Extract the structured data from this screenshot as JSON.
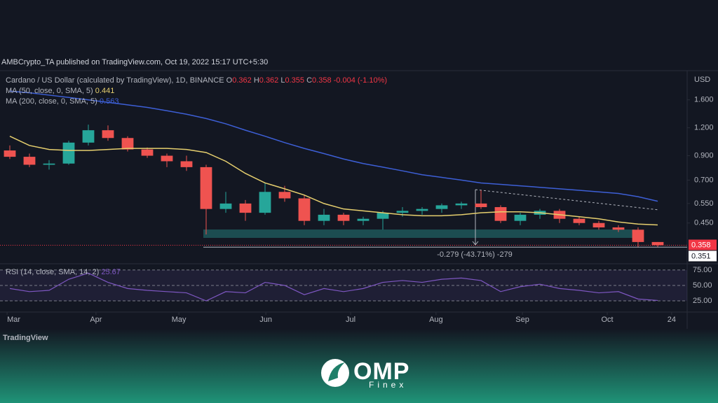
{
  "published": "AMBCrypto_TA published on TradingView.com, Oct 19, 2022 15:17 UTC+5:30",
  "chart_data": [
    {
      "type": "candlestick",
      "title": "Cardano / US Dollar (calculated by TradingView), 1D, BINANCE",
      "ohlc_legend": [
        {
          "key": "O",
          "value": 0.362
        },
        {
          "key": "H",
          "value": 0.362
        },
        {
          "key": "L",
          "value": 0.355
        },
        {
          "key": "C",
          "value": 0.358
        }
      ],
      "change": -0.004,
      "change_pct": {
        "value": -1.1,
        "label": "(-1.10%)"
      },
      "categories": [
        null,
        null,
        null,
        null,
        null,
        null,
        null,
        null,
        null,
        null,
        null,
        null,
        null,
        null,
        null,
        null,
        null,
        null,
        null,
        null,
        null,
        null,
        null,
        null,
        null,
        null,
        null,
        null,
        null,
        null,
        null,
        null,
        null,
        null
      ],
      "open": [
        0.95,
        0.89,
        0.82,
        0.83,
        1.03,
        1.17,
        1.08,
        0.96,
        0.9,
        0.85,
        0.8,
        0.52,
        0.55,
        0.5,
        0.62,
        0.58,
        0.46,
        0.49,
        0.46,
        0.47,
        0.5,
        0.51,
        0.52,
        0.54,
        0.55,
        0.53,
        0.46,
        0.49,
        0.51,
        0.47,
        0.45,
        0.43,
        0.42,
        0.37
      ],
      "high": [
        1.0,
        0.92,
        0.86,
        1.05,
        1.24,
        1.23,
        1.1,
        0.98,
        0.92,
        0.9,
        0.82,
        0.62,
        0.57,
        0.68,
        0.66,
        0.6,
        0.52,
        0.5,
        0.48,
        0.51,
        0.53,
        0.53,
        0.55,
        0.56,
        0.63,
        0.54,
        0.5,
        0.52,
        0.52,
        0.48,
        0.46,
        0.44,
        0.43,
        0.37
      ],
      "low": [
        0.87,
        0.8,
        0.78,
        0.82,
        1.0,
        1.05,
        0.94,
        0.88,
        0.8,
        0.77,
        0.4,
        0.5,
        0.46,
        0.49,
        0.56,
        0.44,
        0.44,
        0.44,
        0.44,
        0.42,
        0.48,
        0.49,
        0.5,
        0.52,
        0.52,
        0.45,
        0.44,
        0.47,
        0.45,
        0.44,
        0.42,
        0.41,
        0.35,
        0.351
      ],
      "close": [
        0.89,
        0.82,
        0.83,
        1.03,
        1.17,
        1.08,
        0.96,
        0.9,
        0.85,
        0.8,
        0.52,
        0.55,
        0.5,
        0.62,
        0.58,
        0.46,
        0.49,
        0.46,
        0.47,
        0.5,
        0.51,
        0.52,
        0.54,
        0.55,
        0.53,
        0.46,
        0.49,
        0.51,
        0.47,
        0.45,
        0.43,
        0.42,
        0.37,
        0.358
      ],
      "colors": {
        "up": "#26a69a",
        "down": "#ef5350"
      },
      "overlays": [
        {
          "name": "MA (50, close, 0, SMA, 5)",
          "color": "#e6cf6e",
          "last_value": 0.441,
          "values": [
            1.1,
            1.0,
            0.96,
            0.95,
            0.95,
            0.96,
            0.97,
            0.97,
            0.97,
            0.96,
            0.93,
            0.85,
            0.75,
            0.68,
            0.64,
            0.6,
            0.55,
            0.52,
            0.51,
            0.5,
            0.49,
            0.485,
            0.485,
            0.49,
            0.5,
            0.505,
            0.505,
            0.5,
            0.49,
            0.48,
            0.47,
            0.455,
            0.445,
            0.441
          ]
        },
        {
          "name": "MA (200, close, 0, SMA, 5)",
          "color": "#3d5fd6",
          "last_value": 0.563,
          "values": [
            1.75,
            1.72,
            1.68,
            1.64,
            1.6,
            1.56,
            1.52,
            1.48,
            1.43,
            1.38,
            1.32,
            1.25,
            1.17,
            1.1,
            1.03,
            0.97,
            0.92,
            0.87,
            0.83,
            0.8,
            0.77,
            0.74,
            0.72,
            0.7,
            0.68,
            0.67,
            0.66,
            0.65,
            0.64,
            0.63,
            0.62,
            0.61,
            0.59,
            0.563
          ]
        }
      ],
      "log_scale": true,
      "ylim": [
        0.3,
        2.13
      ],
      "yticks": [
        {
          "value": 1.6,
          "label": "1.600"
        },
        {
          "value": 1.2,
          "label": "1.200"
        },
        {
          "value": 0.9,
          "label": "0.900"
        },
        {
          "value": 0.7,
          "label": "0.700"
        },
        {
          "value": 0.55,
          "label": "0.550"
        },
        {
          "value": 0.45,
          "label": "0.450"
        }
      ],
      "y_axis_label": "USD",
      "xlim": [
        -0.5,
        34.5
      ],
      "xticks": [
        {
          "value": -0.14,
          "label": "Mar"
        },
        {
          "value": 4.39,
          "label": "Apr"
        },
        {
          "value": 8.61,
          "label": "May"
        },
        {
          "value": 13.04,
          "label": "Jun"
        },
        {
          "value": 17.36,
          "label": "Jul"
        },
        {
          "value": 21.71,
          "label": "Aug"
        },
        {
          "value": 26.11,
          "label": "Sep"
        },
        {
          "value": 30.43,
          "label": "Oct"
        },
        {
          "value": 33.71,
          "label": "24"
        }
      ],
      "price_labels": [
        {
          "value": 0.358,
          "label": "0.358",
          "color": "#f23645"
        },
        {
          "value": 0.351,
          "label": "0.351",
          "color": "#ffffff"
        }
      ],
      "measurement_label": "-0.279 (-43.71%) -279"
    },
    {
      "type": "line",
      "title": "RSI (14, close, SMA, 14, 2)",
      "last_value": 25.67,
      "color": "#7e57c2",
      "values": [
        45,
        40,
        42,
        60,
        70,
        55,
        45,
        42,
        40,
        38,
        25,
        40,
        38,
        55,
        50,
        35,
        45,
        40,
        45,
        55,
        58,
        55,
        60,
        62,
        58,
        40,
        48,
        52,
        45,
        42,
        38,
        40,
        28,
        25.67
      ],
      "ylim": [
        8,
        84
      ],
      "yticks": [
        {
          "value": 75,
          "label": "75.00"
        },
        {
          "value": 50,
          "label": "50.00"
        },
        {
          "value": 25,
          "label": "25.00"
        }
      ]
    }
  ],
  "footer": {
    "brand": "TradingView",
    "logo_text": "OMP",
    "logo_subtext": "Finex"
  }
}
